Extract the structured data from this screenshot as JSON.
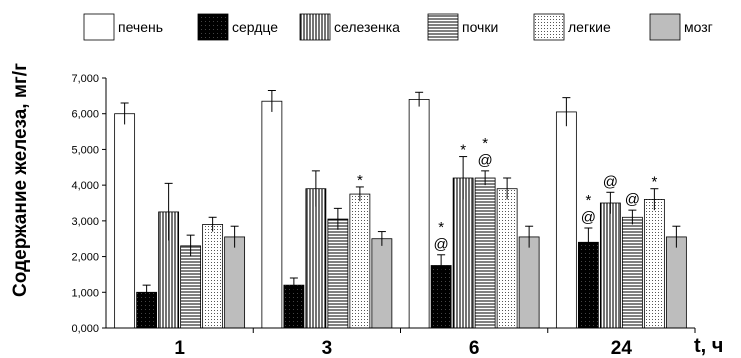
{
  "chart_data": {
    "type": "bar",
    "xlabel": "t, ч",
    "ylabel": "Содержание железа, мг/г",
    "ylim": [
      0,
      7000
    ],
    "yticks": [
      "0,000",
      "1,000",
      "2,000",
      "3,000",
      "4,000",
      "5,000",
      "6,000",
      "7,000"
    ],
    "categories": [
      "1",
      "3",
      "6",
      "24"
    ],
    "grid": false,
    "legend": "top",
    "series": [
      {
        "name": "печень",
        "pattern": "white",
        "values": [
          6000,
          6350,
          6400,
          6050
        ],
        "errors": [
          300,
          300,
          200,
          400
        ],
        "annotations": [
          "",
          "",
          "",
          ""
        ]
      },
      {
        "name": "сердце",
        "pattern": "black",
        "values": [
          1000,
          1200,
          1750,
          2400
        ],
        "errors": [
          200,
          200,
          300,
          400
        ],
        "annotations": [
          "",
          "",
          "*@",
          "*@"
        ]
      },
      {
        "name": "селезенка",
        "pattern": "vertical",
        "values": [
          3250,
          3900,
          4200,
          3500
        ],
        "errors": [
          800,
          500,
          600,
          300
        ],
        "annotations": [
          "",
          "",
          "*",
          "@"
        ]
      },
      {
        "name": "почки",
        "pattern": "horizontal",
        "values": [
          2300,
          3050,
          4200,
          3100
        ],
        "errors": [
          300,
          300,
          200,
          200
        ],
        "annotations": [
          "",
          "",
          "*@",
          "@"
        ]
      },
      {
        "name": "легкие",
        "pattern": "dots",
        "values": [
          2900,
          3750,
          3900,
          3600
        ],
        "errors": [
          200,
          200,
          300,
          300
        ],
        "annotations": [
          "",
          "*",
          "",
          "*"
        ]
      },
      {
        "name": "мозг",
        "pattern": "gray",
        "values": [
          2550,
          2500,
          2550,
          2550
        ],
        "errors": [
          300,
          200,
          300,
          300
        ],
        "annotations": [
          "",
          "",
          "",
          ""
        ]
      }
    ]
  }
}
